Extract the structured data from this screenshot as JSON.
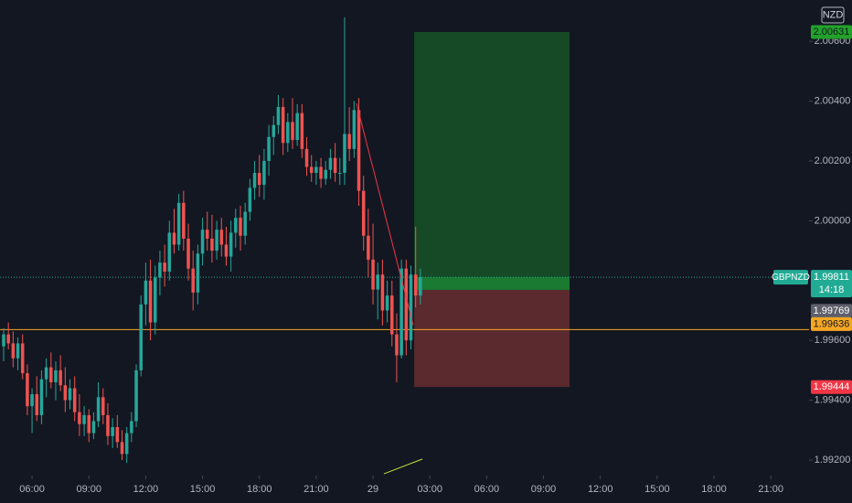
{
  "chart_data": {
    "type": "candlestick",
    "currency": "NZD",
    "up_color": "#26a69a",
    "down_color": "#ef5350",
    "xlim": [
      -0.77,
      170.07
    ],
    "ylim": [
      1.99148,
      2.00738
    ],
    "yticks": [
      {
        "value": 2.006,
        "label": "2.00600"
      },
      {
        "value": 2.004,
        "label": "2.00400"
      },
      {
        "value": 2.002,
        "label": "2.00200"
      },
      {
        "value": 2.0,
        "label": "2.00000"
      },
      {
        "value": 1.996,
        "label": "1.99600"
      },
      {
        "value": 1.994,
        "label": "1.99400"
      },
      {
        "value": 1.992,
        "label": "1.99200"
      }
    ],
    "xticks": [
      {
        "value": 6,
        "label": "06:00"
      },
      {
        "value": 18,
        "label": "09:00"
      },
      {
        "value": 30,
        "label": "12:00"
      },
      {
        "value": 42,
        "label": "15:00"
      },
      {
        "value": 54,
        "label": "18:00"
      },
      {
        "value": 66,
        "label": "21:00"
      },
      {
        "value": 78,
        "label": "29"
      },
      {
        "value": 90,
        "label": "03:00"
      },
      {
        "value": 102,
        "label": "06:00"
      },
      {
        "value": 114,
        "label": "09:00"
      },
      {
        "value": 126,
        "label": "12:00"
      },
      {
        "value": 138,
        "label": "15:00"
      },
      {
        "value": 150,
        "label": "18:00"
      },
      {
        "value": 162,
        "label": "21:00"
      }
    ],
    "x": [
      0,
      1,
      2,
      3,
      4,
      5,
      6,
      7,
      8,
      9,
      10,
      11,
      12,
      13,
      14,
      15,
      16,
      17,
      18,
      19,
      20,
      21,
      22,
      23,
      24,
      25,
      26,
      27,
      28,
      29,
      30,
      31,
      32,
      33,
      34,
      35,
      36,
      37,
      38,
      39,
      40,
      41,
      42,
      43,
      44,
      45,
      46,
      47,
      48,
      49,
      50,
      51,
      52,
      53,
      54,
      55,
      56,
      57,
      58,
      59,
      60,
      61,
      62,
      63,
      64,
      65,
      66,
      67,
      68,
      69,
      70,
      71,
      72,
      73,
      74,
      75,
      76,
      77,
      78,
      79,
      80,
      81,
      82,
      83,
      84,
      85,
      86,
      87,
      88
    ],
    "open": [
      1.9958,
      1.9962,
      1.9959,
      1.9954,
      1.9959,
      1.9949,
      1.9938,
      1.9942,
      1.9935,
      1.9947,
      1.9951,
      1.9946,
      1.995,
      1.9945,
      1.994,
      1.9944,
      1.9936,
      1.9932,
      1.9935,
      1.9929,
      1.9933,
      1.9941,
      1.9935,
      1.9928,
      1.9931,
      1.9926,
      1.9922,
      1.9929,
      1.9933,
      1.995,
      1.9972,
      1.998,
      1.9966,
      1.9981,
      1.9986,
      1.9983,
      1.9996,
      1.9992,
      2.0006,
      1.9994,
      1.9984,
      1.9976,
      1.9989,
      1.9997,
      1.9994,
      1.999,
      1.9997,
      1.9992,
      1.9988,
      1.9996,
      2.0001,
      1.9995,
      2.0003,
      2.0011,
      2.0016,
      2.0012,
      2.002,
      2.0028,
      2.0032,
      2.0038,
      2.0026,
      2.0033,
      2.0027,
      2.0036,
      2.0024,
      2.0018,
      2.0016,
      2.0018,
      2.0014,
      2.0017,
      2.0021,
      2.0016,
      2.0016,
      2.0029,
      2.0024,
      2.0037,
      2.001,
      1.9995,
      1.9987,
      1.9977,
      1.9982,
      1.997,
      1.9975,
      1.9962,
      1.9955,
      1.9984,
      1.996,
      1.9982,
      1.9975
    ],
    "high": [
      1.9964,
      1.9966,
      1.9963,
      1.9961,
      1.9962,
      1.9952,
      1.9944,
      1.9948,
      1.995,
      1.9954,
      1.9956,
      1.9953,
      1.9955,
      1.9951,
      1.9947,
      1.9948,
      1.9942,
      1.9938,
      1.9937,
      1.9936,
      1.9946,
      1.9944,
      1.9939,
      1.9934,
      1.9935,
      1.993,
      1.9931,
      1.9936,
      1.9952,
      1.9975,
      1.9986,
      1.9987,
      1.9985,
      1.999,
      1.9992,
      2.0,
      2.0004,
      2.0009,
      2.001,
      1.9999,
      1.999,
      1.9992,
      2.0001,
      2.0003,
      2.0002,
      2.0,
      2.0001,
      1.9998,
      2.0,
      2.0004,
      2.0005,
      2.0006,
      2.0014,
      2.002,
      2.0022,
      2.0024,
      2.0032,
      2.0035,
      2.0042,
      2.0041,
      2.0036,
      2.0041,
      2.0039,
      2.0039,
      2.0028,
      2.0022,
      2.002,
      2.0021,
      2.002,
      2.0024,
      2.0026,
      2.0021,
      2.0068,
      2.0038,
      2.004,
      2.0041,
      2.0015,
      2.0004,
      1.9999,
      1.9986,
      1.9987,
      1.998,
      1.998,
      1.9969,
      1.9987,
      1.9987,
      1.9985,
      1.9998,
      1.9984
    ],
    "low": [
      1.9953,
      1.9957,
      1.9951,
      1.995,
      1.9947,
      1.9935,
      1.9929,
      1.9933,
      1.9932,
      1.9941,
      1.9944,
      1.994,
      1.9943,
      1.9936,
      1.9937,
      1.9933,
      1.9928,
      1.9928,
      1.9926,
      1.9927,
      1.9931,
      1.9932,
      1.9925,
      1.9924,
      1.9924,
      1.992,
      1.9919,
      1.9926,
      1.9931,
      1.9948,
      1.9965,
      1.996,
      1.9962,
      1.9975,
      1.9978,
      1.998,
      1.9989,
      1.999,
      1.999,
      1.998,
      1.997,
      1.9972,
      1.9985,
      1.999,
      1.9986,
      1.9987,
      1.9988,
      1.9985,
      1.9983,
      1.9991,
      1.999,
      1.9992,
      2.0,
      2.0007,
      2.0008,
      2.0007,
      2.0015,
      2.0022,
      2.0029,
      2.0022,
      2.0023,
      2.0024,
      2.0025,
      2.0021,
      2.0015,
      2.0013,
      2.0012,
      2.0011,
      2.0012,
      2.0014,
      2.0013,
      2.0012,
      2.0012,
      2.002,
      2.0021,
      2.0005,
      1.999,
      1.9981,
      1.9972,
      1.9967,
      1.9965,
      1.9966,
      1.9958,
      1.9946,
      1.9954,
      1.9955,
      1.9957,
      1.9971,
      1.9972
    ],
    "close": [
      1.9962,
      1.9959,
      1.9954,
      1.9959,
      1.9949,
      1.9938,
      1.9942,
      1.9935,
      1.9947,
      1.9951,
      1.9946,
      1.995,
      1.9945,
      1.994,
      1.9944,
      1.9936,
      1.9932,
      1.9935,
      1.9929,
      1.9933,
      1.9941,
      1.9935,
      1.9928,
      1.9931,
      1.9926,
      1.9922,
      1.9929,
      1.9933,
      1.995,
      1.9972,
      1.998,
      1.9966,
      1.9981,
      1.9986,
      1.9983,
      1.9996,
      1.9992,
      2.0006,
      1.9994,
      1.9984,
      1.9976,
      1.9989,
      1.9997,
      1.9994,
      1.999,
      1.9997,
      1.9992,
      1.9988,
      1.9996,
      2.0001,
      1.9995,
      2.0003,
      2.0011,
      2.0016,
      2.0012,
      2.002,
      2.0028,
      2.0032,
      2.0038,
      2.0026,
      2.0033,
      2.0027,
      2.0036,
      2.0024,
      2.0018,
      2.0016,
      2.0018,
      2.0014,
      2.0017,
      2.0021,
      2.0016,
      2.0016,
      2.0029,
      2.0024,
      2.0037,
      2.001,
      1.9995,
      1.9987,
      1.9977,
      1.9982,
      1.997,
      1.9975,
      1.9962,
      1.9955,
      1.9984,
      1.996,
      1.9982,
      1.9975,
      1.99811
    ],
    "current": {
      "symbol": "GBPNZD",
      "countdown": "14:18",
      "color": "#22ab94"
    },
    "position": {
      "target": 2.00631,
      "entry": 1.99769,
      "stop": 1.99444,
      "x_start": 86.7,
      "x_end": 119.5
    },
    "hline": {
      "value": 1.99636,
      "color": "#f5a623"
    },
    "lines": [
      {
        "color": "#f23645",
        "x": [
          74.5,
          86.5
        ],
        "y": [
          2.00392,
          1.99651
        ]
      },
      {
        "color": "#c6e03a",
        "x": [
          80.3,
          88.4
        ],
        "y": [
          1.99154,
          1.99203
        ]
      }
    ]
  }
}
